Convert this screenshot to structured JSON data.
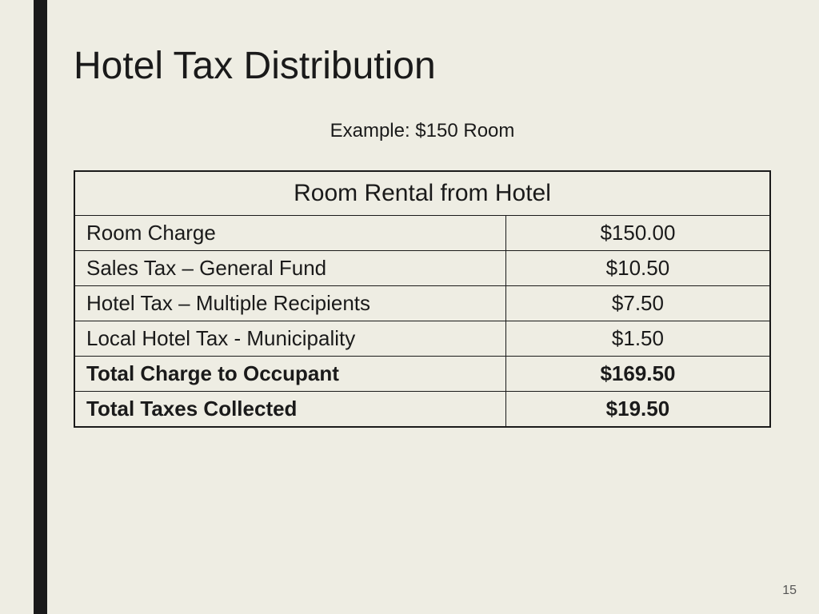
{
  "slide": {
    "title": "Hotel Tax Distribution",
    "subtitle": "Example: $150 Room",
    "page_number": "15",
    "background_color": "#eeede3",
    "accent_color": "#1a1a1a",
    "text_color": "#1a1a1a"
  },
  "table": {
    "header": "Room Rental from Hotel",
    "border_color": "#1a1a1a",
    "label_fontsize": 26,
    "header_fontsize": 30,
    "rows": [
      {
        "label": "Room Charge",
        "value": "$150.00",
        "bold": false
      },
      {
        "label": "Sales Tax – General Fund",
        "value": "$10.50",
        "bold": false
      },
      {
        "label": "Hotel Tax – Multiple Recipients",
        "value": "$7.50",
        "bold": false
      },
      {
        "label": "Local Hotel Tax - Municipality",
        "value": "$1.50",
        "bold": false
      },
      {
        "label": "Total Charge to Occupant",
        "value": "$169.50",
        "bold": true
      },
      {
        "label": "Total Taxes Collected",
        "value": "$19.50",
        "bold": true
      }
    ]
  }
}
